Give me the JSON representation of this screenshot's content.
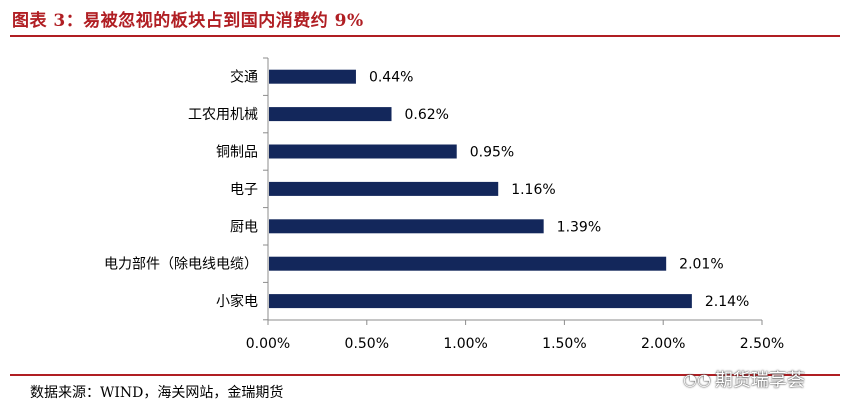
{
  "header": {
    "title": "图表 3：易被忽视的板块占到国内消费约 9%"
  },
  "footer": {
    "source": "数据来源：WIND，海关网站，金瑞期货"
  },
  "watermark": {
    "text": "期货瑞享荟",
    "icon": "wechat-icon"
  },
  "colors": {
    "bar": "#13275b",
    "accent": "#b01e23",
    "axis": "#8c8c8c"
  },
  "chart_data": {
    "type": "bar",
    "orientation": "horizontal",
    "categories": [
      "交通",
      "工农用机械",
      "铜制品",
      "电子",
      "厨电",
      "电力部件（除电线电缆）",
      "小家电"
    ],
    "values": [
      0.44,
      0.62,
      0.95,
      1.16,
      1.39,
      2.01,
      2.14
    ],
    "data_labels": [
      "0.44%",
      "0.62%",
      "0.95%",
      "1.16%",
      "1.39%",
      "2.01%",
      "2.14%"
    ],
    "xlim": [
      0,
      2.5
    ],
    "x_ticks": [
      0,
      0.5,
      1.0,
      1.5,
      2.0,
      2.5
    ],
    "x_tick_labels": [
      "0.00%",
      "0.50%",
      "1.00%",
      "1.50%",
      "2.00%",
      "2.50%"
    ],
    "grid": false,
    "legend": "none"
  }
}
